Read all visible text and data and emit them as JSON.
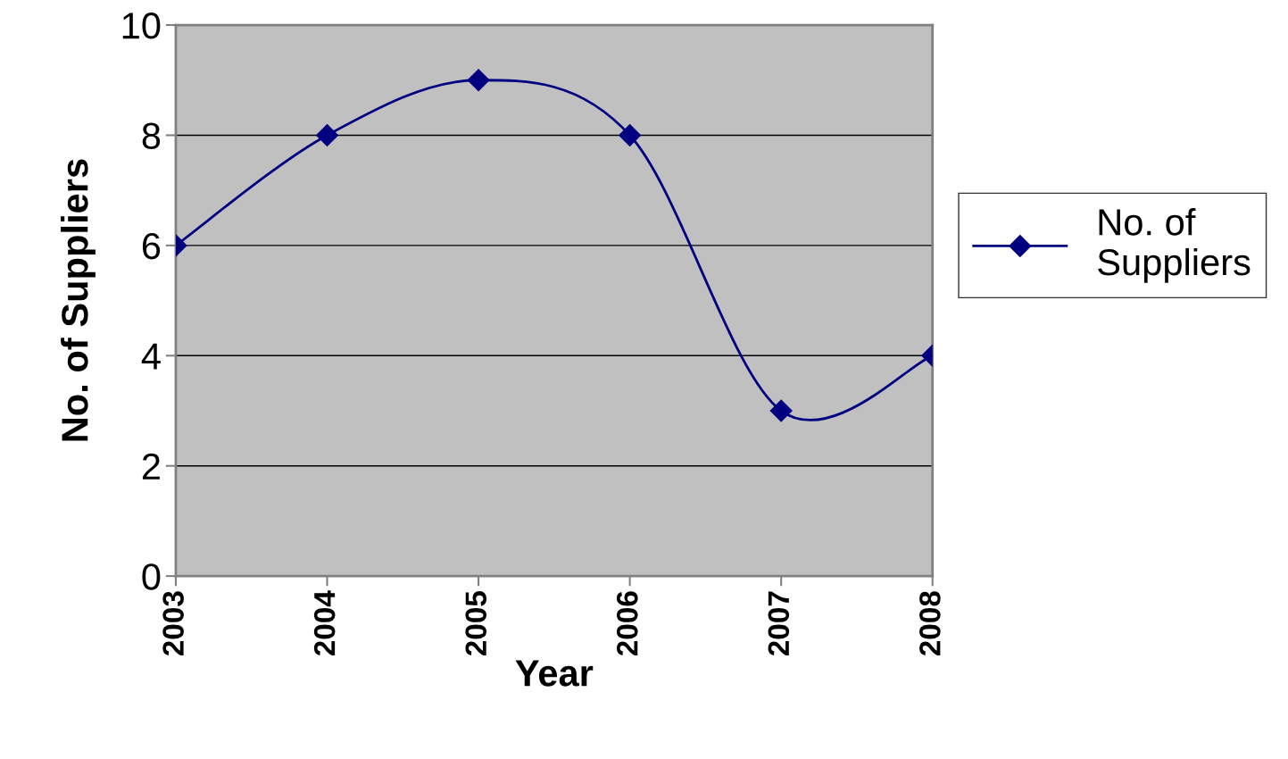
{
  "chart_data": {
    "type": "line",
    "xlabel": "Year",
    "ylabel": "No. of Suppliers",
    "categories": [
      "2003",
      "2004",
      "2005",
      "2006",
      "2007",
      "2008"
    ],
    "series": [
      {
        "name": "No. of Suppliers",
        "color": "#000080",
        "values": [
          6,
          8,
          9,
          8,
          3,
          4
        ]
      }
    ],
    "ylim": [
      0,
      10
    ],
    "yticks": [
      0,
      2,
      4,
      6,
      8,
      10
    ],
    "grid": "y",
    "legend": "right",
    "marker": "diamond",
    "line_style": "solid"
  }
}
